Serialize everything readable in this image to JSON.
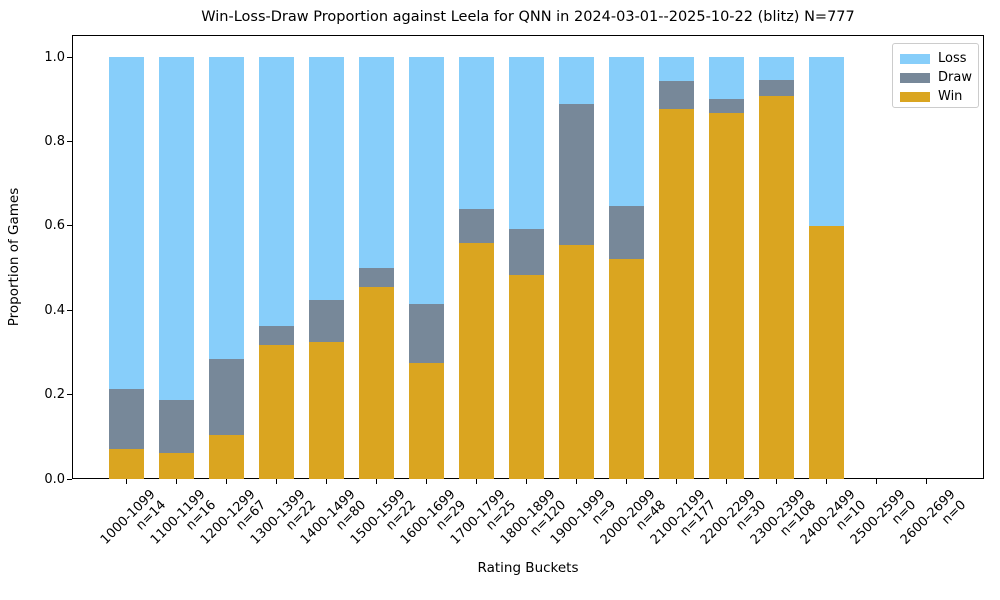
{
  "chart_data": {
    "type": "bar",
    "subtype": "stacked_proportion",
    "title": "Win-Loss-Draw Proportion against Leela for QNN in 2024-03-01--2025-10-22 (blitz) N=777",
    "xlabel": "Rating Buckets",
    "ylabel": "Proportion of Games",
    "total_games": 777,
    "ylim": [
      0,
      1.05
    ],
    "yticks": [
      "0.0",
      "0.2",
      "0.4",
      "0.6",
      "0.8",
      "1.0"
    ],
    "grid": false,
    "legend_position": "upper right",
    "legend": [
      {
        "label": "Loss",
        "color": "#87CEFA"
      },
      {
        "label": "Draw",
        "color": "#778899"
      },
      {
        "label": "Win",
        "color": "#DAA520"
      }
    ],
    "stack_order_bottom_to_top": [
      "win",
      "draw",
      "loss"
    ],
    "categories": [
      {
        "bucket": "1000-1099",
        "n": 14,
        "win": 0.0714,
        "draw": 0.1429,
        "loss": 0.7857
      },
      {
        "bucket": "1100-1199",
        "n": 16,
        "win": 0.0625,
        "draw": 0.125,
        "loss": 0.8125
      },
      {
        "bucket": "1200-1299",
        "n": 67,
        "win": 0.1045,
        "draw": 0.1791,
        "loss": 0.7164
      },
      {
        "bucket": "1300-1399",
        "n": 22,
        "win": 0.3182,
        "draw": 0.0455,
        "loss": 0.6364
      },
      {
        "bucket": "1400-1499",
        "n": 80,
        "win": 0.325,
        "draw": 0.1,
        "loss": 0.575
      },
      {
        "bucket": "1500-1599",
        "n": 22,
        "win": 0.4545,
        "draw": 0.0455,
        "loss": 0.5
      },
      {
        "bucket": "1600-1699",
        "n": 29,
        "win": 0.2759,
        "draw": 0.1379,
        "loss": 0.5862
      },
      {
        "bucket": "1700-1799",
        "n": 25,
        "win": 0.56,
        "draw": 0.08,
        "loss": 0.36
      },
      {
        "bucket": "1800-1899",
        "n": 120,
        "win": 0.4833,
        "draw": 0.1083,
        "loss": 0.4083
      },
      {
        "bucket": "1900-1999",
        "n": 9,
        "win": 0.5556,
        "draw": 0.3333,
        "loss": 0.1111
      },
      {
        "bucket": "2000-2099",
        "n": 48,
        "win": 0.5208,
        "draw": 0.125,
        "loss": 0.3542
      },
      {
        "bucket": "2100-2199",
        "n": 177,
        "win": 0.8757,
        "draw": 0.0678,
        "loss": 0.0565
      },
      {
        "bucket": "2200-2299",
        "n": 30,
        "win": 0.8667,
        "draw": 0.0333,
        "loss": 0.1
      },
      {
        "bucket": "2300-2399",
        "n": 108,
        "win": 0.9074,
        "draw": 0.037,
        "loss": 0.0556
      },
      {
        "bucket": "2400-2499",
        "n": 10,
        "win": 0.6,
        "draw": 0.0,
        "loss": 0.4
      },
      {
        "bucket": "2500-2599",
        "n": 0,
        "win": 0,
        "draw": 0,
        "loss": 0
      },
      {
        "bucket": "2600-2699",
        "n": 0,
        "win": 0,
        "draw": 0,
        "loss": 0
      }
    ],
    "xtick_n_prefix": "n="
  }
}
